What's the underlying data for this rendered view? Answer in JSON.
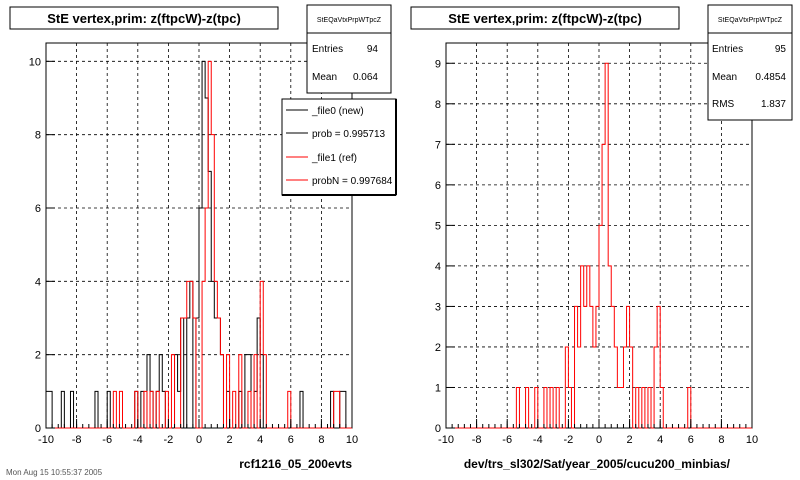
{
  "footer_text": "Mon Aug 15 10:55:37 2005",
  "colors": {
    "new": "#000000",
    "ref": "#ff0000",
    "frame": "#000000",
    "grid": "#000000"
  },
  "chart_data": [
    {
      "type": "histogram",
      "title": "StE  vertex,prim: z(ftpcW)-z(tpc)",
      "xlabel": "rcf1216_05_200evts",
      "ylabel": "",
      "xlim": [
        -10,
        10
      ],
      "ylim": [
        0,
        10.5
      ],
      "xticks": [
        -10,
        -8,
        -6,
        -4,
        -2,
        0,
        2,
        4,
        6,
        8,
        10
      ],
      "yticks": [
        0,
        2,
        4,
        6,
        8,
        10
      ],
      "grid": true,
      "bin_width": 0.2,
      "stats": {
        "name": "StEQaVtxPrpWTpcZ",
        "rows": [
          {
            "label": "Entries",
            "value": "94"
          },
          {
            "label": "Mean",
            "value": "0.064"
          }
        ]
      },
      "legend": {
        "placement": "top-right",
        "entries": [
          {
            "label": "_file0 (new)",
            "color": "#000000"
          },
          {
            "label": "prob = 0.995713",
            "color": "#000000"
          },
          {
            "label": "_file1 (ref)",
            "color": "#ff0000"
          },
          {
            "label": "probN = 0.997684",
            "color": "#ff0000"
          }
        ]
      },
      "series": [
        {
          "color": "#000000",
          "bins": [
            [
              -10.0,
              1
            ],
            [
              -9.8,
              1
            ],
            [
              -9.0,
              1
            ],
            [
              -8.4,
              1
            ],
            [
              -6.8,
              1
            ],
            [
              -6.0,
              1
            ],
            [
              -4.2,
              1
            ],
            [
              -3.8,
              1
            ],
            [
              -3.4,
              2
            ],
            [
              -3.2,
              1
            ],
            [
              -2.8,
              1
            ],
            [
              -2.6,
              2
            ],
            [
              -2.4,
              1
            ],
            [
              -1.6,
              2
            ],
            [
              -1.4,
              1
            ],
            [
              -1.2,
              3
            ],
            [
              -0.8,
              3
            ],
            [
              -0.6,
              4
            ],
            [
              -0.2,
              3
            ],
            [
              0.0,
              6
            ],
            [
              0.2,
              10
            ],
            [
              0.4,
              9
            ],
            [
              0.6,
              7
            ],
            [
              0.8,
              4
            ],
            [
              1.0,
              3
            ],
            [
              1.2,
              3
            ],
            [
              1.4,
              2
            ],
            [
              1.8,
              1
            ],
            [
              2.6,
              1
            ],
            [
              3.0,
              2
            ],
            [
              3.2,
              2
            ],
            [
              3.6,
              1
            ],
            [
              3.8,
              3
            ],
            [
              4.0,
              2
            ],
            [
              6.6,
              1
            ],
            [
              8.6,
              1
            ],
            [
              9.2,
              1
            ],
            [
              9.4,
              1
            ]
          ]
        },
        {
          "color": "#ff0000",
          "bins": [
            [
              -5.6,
              1
            ],
            [
              -5.2,
              1
            ],
            [
              -4.2,
              1
            ],
            [
              -3.6,
              1
            ],
            [
              -3.2,
              1
            ],
            [
              -2.8,
              1
            ],
            [
              -2.2,
              1
            ],
            [
              -1.8,
              2
            ],
            [
              -1.2,
              3
            ],
            [
              -1.0,
              3
            ],
            [
              -0.8,
              4
            ],
            [
              -0.6,
              4
            ],
            [
              -0.4,
              3
            ],
            [
              0.2,
              4
            ],
            [
              0.4,
              6
            ],
            [
              0.6,
              10
            ],
            [
              0.8,
              8
            ],
            [
              1.0,
              4
            ],
            [
              1.2,
              3
            ],
            [
              1.4,
              2
            ],
            [
              1.8,
              2
            ],
            [
              2.2,
              1
            ],
            [
              2.6,
              2
            ],
            [
              3.2,
              1
            ],
            [
              3.6,
              2
            ],
            [
              4.0,
              4
            ],
            [
              4.2,
              2
            ],
            [
              5.8,
              1
            ],
            [
              8.8,
              1
            ],
            [
              9.0,
              1
            ]
          ]
        }
      ]
    },
    {
      "type": "histogram",
      "title": "StE  vertex,prim: z(ftpcW)-z(tpc)",
      "xlabel": "dev/trs_sl302/Sat/year_2005/cucu200_minbias/",
      "ylabel": "",
      "xlim": [
        -10,
        10
      ],
      "ylim": [
        0,
        9.5
      ],
      "xticks": [
        -10,
        -8,
        -6,
        -4,
        -2,
        0,
        2,
        4,
        6,
        8,
        10
      ],
      "yticks": [
        0,
        1,
        2,
        3,
        4,
        5,
        6,
        7,
        8,
        9
      ],
      "grid": true,
      "bin_width": 0.2,
      "stats": {
        "name": "StEQaVtxPrpWTpcZ",
        "rows": [
          {
            "label": "Entries",
            "value": "95"
          },
          {
            "label": "Mean",
            "value": "0.4854"
          },
          {
            "label": "RMS",
            "value": "1.837"
          }
        ]
      },
      "series": [
        {
          "color": "#ff0000",
          "bins": [
            [
              -5.4,
              1
            ],
            [
              -4.8,
              1
            ],
            [
              -4.2,
              1
            ],
            [
              -3.6,
              1
            ],
            [
              -3.2,
              1
            ],
            [
              -2.8,
              1
            ],
            [
              -2.2,
              2
            ],
            [
              -2.0,
              1
            ],
            [
              -1.6,
              3
            ],
            [
              -1.4,
              2
            ],
            [
              -1.2,
              4
            ],
            [
              -1.0,
              3
            ],
            [
              -0.8,
              4
            ],
            [
              -0.6,
              3
            ],
            [
              -0.4,
              2
            ],
            [
              -0.2,
              3
            ],
            [
              0.0,
              5
            ],
            [
              0.2,
              7
            ],
            [
              0.4,
              9
            ],
            [
              0.6,
              4
            ],
            [
              0.8,
              3
            ],
            [
              1.0,
              2
            ],
            [
              1.2,
              1
            ],
            [
              1.4,
              1
            ],
            [
              1.6,
              2
            ],
            [
              1.8,
              3
            ],
            [
              2.0,
              2
            ],
            [
              2.4,
              1
            ],
            [
              2.8,
              1
            ],
            [
              3.2,
              1
            ],
            [
              3.6,
              2
            ],
            [
              3.8,
              3
            ],
            [
              4.0,
              1
            ],
            [
              5.8,
              1
            ]
          ]
        }
      ]
    }
  ]
}
